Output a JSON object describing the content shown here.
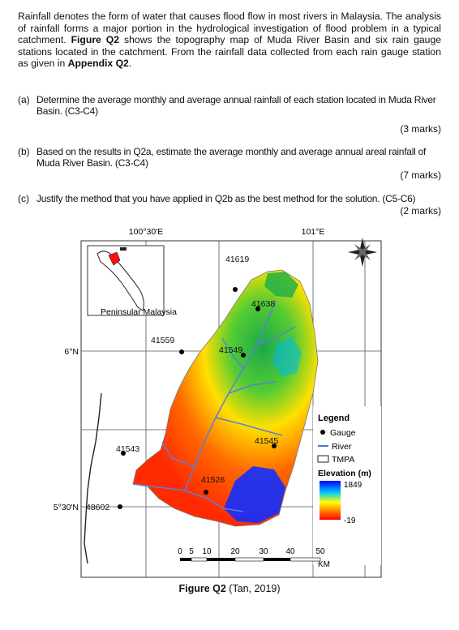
{
  "intro": {
    "s1": "Rainfall denotes the form of water that causes flood flow in most rivers in Malaysia. The analysis of rainfall forms a major portion in the hydrological investigation of flood problem in a typical catchment. ",
    "fig_ref": "Figure Q2",
    "s2": " shows the topography map of Muda River Basin and six rain gauge stations located in the catchment. From the rainfall data collected from each rain gauge station as given in ",
    "appendix_ref": "Appendix Q2",
    "s3": "."
  },
  "questions": [
    {
      "label": "(a)",
      "text": "Determine the average monthly and average annual rainfall of each station located in Muda River Basin. (C3-C4)",
      "marks": "(3 marks)"
    },
    {
      "label": "(b)",
      "text": "Based on the results in Q2a, estimate the average monthly and average annual areal rainfall of Muda River Basin. (C3-C4)",
      "marks": "(7 marks)"
    },
    {
      "label": "(c)",
      "text": "Justify the method that you have applied in Q2b as the best method for the solution. (C5-C6)",
      "marks": "(2 marks)"
    }
  ],
  "map": {
    "lon_labels": [
      "100°30'E",
      "101°E"
    ],
    "lat_labels": [
      "6°N",
      "5°30'N"
    ],
    "inset_label": "Peninsular Malaysia",
    "stations": [
      "41619",
      "41638",
      "41559",
      "41549",
      "41543",
      "41545",
      "41526",
      "48602"
    ],
    "legend": {
      "title": "Legend",
      "gauge": "Gauge",
      "river": "River",
      "tmpa": "TMPA",
      "elevation_title": "Elevation (m)",
      "elev_max": "1849",
      "elev_min": "-19"
    },
    "scale": {
      "ticks": [
        "0",
        "5",
        "10",
        "20",
        "30",
        "40",
        "50"
      ],
      "unit": "KM"
    },
    "colors": {
      "low": "#ff2a00",
      "mid": "#ffe000",
      "green": "#33cc33",
      "high": "#0000ff"
    }
  },
  "caption": {
    "bold": "Figure Q2",
    "rest": " (Tan, 2019)"
  }
}
